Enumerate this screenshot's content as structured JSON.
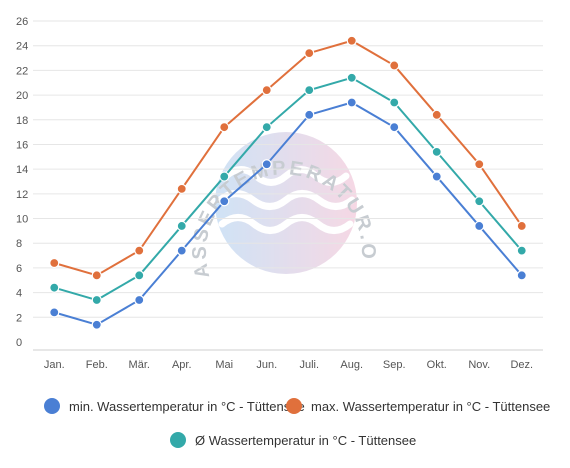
{
  "chart_data": {
    "type": "line",
    "categories": [
      "Jan.",
      "Feb.",
      "Mär.",
      "Apr.",
      "Mai",
      "Jun.",
      "Juli.",
      "Aug.",
      "Sep.",
      "Okt.",
      "Nov.",
      "Dez."
    ],
    "ylim": [
      0,
      26
    ],
    "yticks": [
      0,
      2,
      4,
      6,
      8,
      10,
      12,
      14,
      16,
      18,
      20,
      22,
      24,
      26
    ],
    "grid": true,
    "legend_position": "bottom",
    "series": [
      {
        "name": "min. Wassertemperatur in °C - Tüttensee",
        "color": "#4a7fd4",
        "values": [
          2.4,
          1.4,
          3.4,
          7.4,
          11.4,
          14.4,
          18.4,
          19.4,
          17.4,
          13.4,
          9.4,
          5.4
        ]
      },
      {
        "name": "max. Wassertemperatur in °C - Tüttensee",
        "color": "#e0703c",
        "values": [
          6.4,
          5.4,
          7.4,
          12.4,
          17.4,
          20.4,
          23.4,
          24.4,
          22.4,
          18.4,
          14.4,
          9.4
        ]
      },
      {
        "name": "Ø Wassertemperatur in °C - Tüttensee",
        "color": "#33a9a9",
        "values": [
          4.4,
          3.4,
          5.4,
          9.4,
          13.4,
          17.4,
          20.4,
          21.4,
          19.4,
          15.4,
          11.4,
          7.4
        ]
      }
    ]
  },
  "watermark": {
    "text": "WASSERTEMPERATUR.ORG"
  }
}
